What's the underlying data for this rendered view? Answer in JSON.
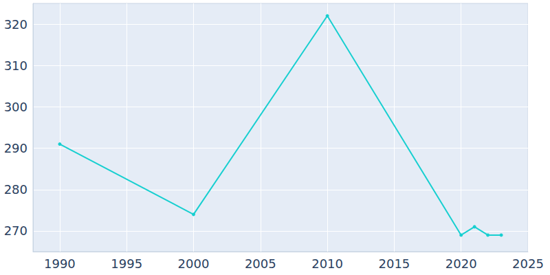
{
  "chart_data": {
    "type": "line",
    "x": [
      1990,
      2000,
      2010,
      2020,
      2021,
      2022,
      2023
    ],
    "values": [
      291,
      274,
      322,
      269,
      271,
      269,
      269
    ],
    "color": "#17cfd0",
    "marker": "circle",
    "xlim": [
      1988,
      2025
    ],
    "xticks": [
      1990,
      1995,
      2000,
      2005,
      2010,
      2015,
      2020,
      2025
    ],
    "ylim": [
      265,
      325
    ],
    "yticks": [
      270,
      280,
      290,
      300,
      310,
      320
    ],
    "grid": true
  }
}
